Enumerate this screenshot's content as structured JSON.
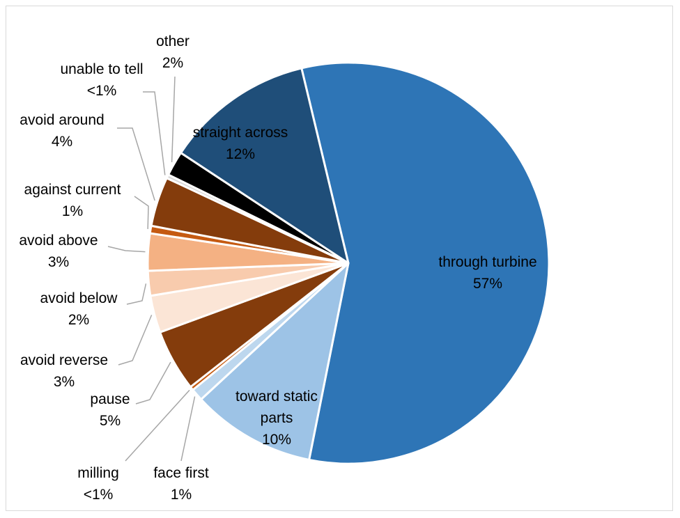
{
  "chart_data": {
    "type": "pie",
    "title": "",
    "legend": "none",
    "slices": [
      {
        "name": "through turbine",
        "value": 57,
        "label": "57%",
        "color": "#2e75b6"
      },
      {
        "name": "toward static parts",
        "value": 10,
        "label": "10%",
        "color": "#9dc3e6"
      },
      {
        "name": "face first",
        "value": 1,
        "label": "1%",
        "color": "#bdd7ee"
      },
      {
        "name": "milling",
        "value": 0.3,
        "label": "<1%",
        "color": "#c55a11"
      },
      {
        "name": "pause",
        "value": 5,
        "label": "5%",
        "color": "#843c0c"
      },
      {
        "name": "avoid reverse",
        "value": 3,
        "label": "3%",
        "color": "#fbe5d6"
      },
      {
        "name": "avoid below",
        "value": 2,
        "label": "2%",
        "color": "#f8cbad"
      },
      {
        "name": "avoid above",
        "value": 3,
        "label": "3%",
        "color": "#f4b183"
      },
      {
        "name": "against current",
        "value": 0.6,
        "label": "1%",
        "color": "#c55a11"
      },
      {
        "name": "avoid around",
        "value": 4,
        "label": "4%",
        "color": "#843c0c"
      },
      {
        "name": "unable to tell",
        "value": 0.3,
        "label": "<1%",
        "color": "#d9d9d9"
      },
      {
        "name": "other",
        "value": 2,
        "label": "2%",
        "color": "#000000"
      },
      {
        "name": "straight across",
        "value": 12,
        "label": "12%",
        "color": "#1f4e79"
      }
    ]
  }
}
